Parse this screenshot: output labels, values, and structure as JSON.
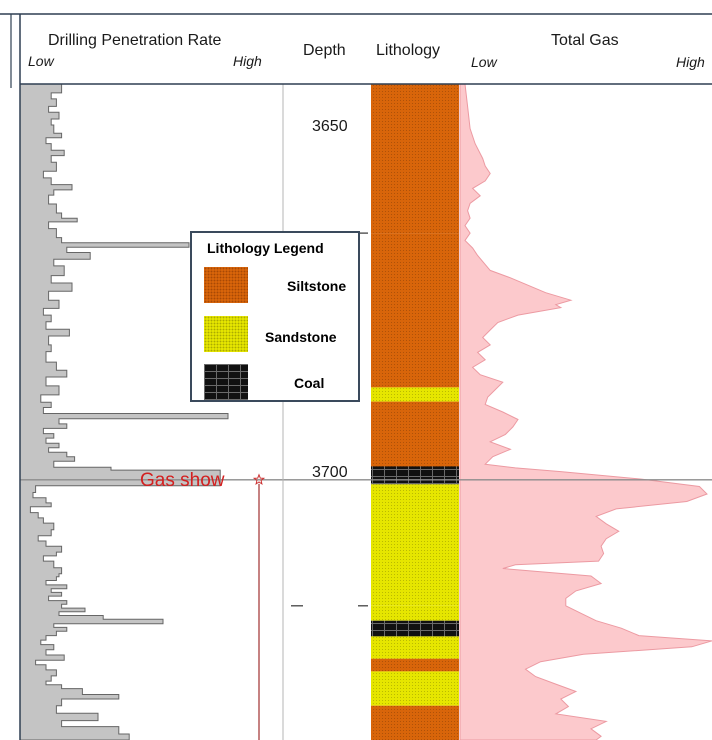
{
  "header": {
    "rop_title": "Drilling Penetration Rate",
    "rop_low": "Low",
    "rop_high": "High",
    "depth_title": "Depth",
    "lithology_title": "Lithology",
    "gas_title": "Total Gas",
    "gas_low": "Low",
    "gas_high": "High"
  },
  "depth_ticks": [
    "3650",
    "3700"
  ],
  "legend": {
    "title": "Lithology Legend",
    "items": [
      {
        "label": "Siltstone",
        "color": "#d8650a"
      },
      {
        "label": "Sandstone",
        "color": "#e6e600"
      },
      {
        "label": "Coal",
        "color": "#111111"
      }
    ]
  },
  "annotation": {
    "label": "Gas show",
    "color": "#d32020"
  },
  "colors": {
    "frame": "#2e3f52",
    "siltstone": "#d8650a",
    "sandstone": "#e6e600",
    "coal": "#111111",
    "rop_fill": "#c4c4c4",
    "rop_line": "#666666",
    "gas_fill": "#fcc9cc",
    "gas_line": "#ec9aa2",
    "gas_show_line": "#a83f3f"
  },
  "chart_data": {
    "type": "well-log",
    "depth_range": [
      3630,
      3718
    ],
    "depth_ticks": [
      3650,
      3700
    ],
    "lithology": [
      {
        "type": "siltstone",
        "top": 3630.0,
        "base": 3650.0
      },
      {
        "type": "siltstone",
        "top": 3650.0,
        "base": 3670.7
      },
      {
        "type": "sandstone",
        "top": 3670.7,
        "base": 3672.6
      },
      {
        "type": "siltstone",
        "top": 3672.6,
        "base": 3681.3
      },
      {
        "type": "coal",
        "top": 3681.3,
        "base": 3683.7
      },
      {
        "type": "sandstone",
        "top": 3683.7,
        "base": 3700.0
      },
      {
        "type": "sandstone",
        "top": 3700.0,
        "base": 3702.0
      },
      {
        "type": "coal",
        "top": 3702.0,
        "base": 3704.1
      },
      {
        "type": "sandstone",
        "top": 3704.1,
        "base": 3707.1
      },
      {
        "type": "siltstone",
        "top": 3707.1,
        "base": 3708.8
      },
      {
        "type": "sandstone",
        "top": 3708.8,
        "base": 3713.4
      },
      {
        "type": "siltstone",
        "top": 3713.4,
        "base": 3718.0
      }
    ],
    "gas_show_depth": 3683.1,
    "rop": [
      {
        "d": 3630.4,
        "v": 0.16
      },
      {
        "d": 3631.2,
        "v": 0.12
      },
      {
        "d": 3632.0,
        "v": 0.14
      },
      {
        "d": 3633.0,
        "v": 0.11
      },
      {
        "d": 3633.8,
        "v": 0.15
      },
      {
        "d": 3634.7,
        "v": 0.12
      },
      {
        "d": 3635.5,
        "v": 0.13
      },
      {
        "d": 3636.6,
        "v": 0.16
      },
      {
        "d": 3637.2,
        "v": 0.1
      },
      {
        "d": 3638.0,
        "v": 0.12
      },
      {
        "d": 3638.9,
        "v": 0.17
      },
      {
        "d": 3639.6,
        "v": 0.12
      },
      {
        "d": 3640.5,
        "v": 0.14
      },
      {
        "d": 3641.7,
        "v": 0.09
      },
      {
        "d": 3642.6,
        "v": 0.12
      },
      {
        "d": 3643.5,
        "v": 0.2
      },
      {
        "d": 3644.2,
        "v": 0.13
      },
      {
        "d": 3644.9,
        "v": 0.11
      },
      {
        "d": 3646.1,
        "v": 0.14
      },
      {
        "d": 3647.3,
        "v": 0.16
      },
      {
        "d": 3648.0,
        "v": 0.22
      },
      {
        "d": 3648.5,
        "v": 0.11
      },
      {
        "d": 3649.4,
        "v": 0.14
      },
      {
        "d": 3650.6,
        "v": 0.16
      },
      {
        "d": 3651.3,
        "v": 0.65
      },
      {
        "d": 3651.9,
        "v": 0.18
      },
      {
        "d": 3652.6,
        "v": 0.27
      },
      {
        "d": 3653.5,
        "v": 0.13
      },
      {
        "d": 3654.4,
        "v": 0.17
      },
      {
        "d": 3655.7,
        "v": 0.12
      },
      {
        "d": 3656.7,
        "v": 0.2
      },
      {
        "d": 3657.8,
        "v": 0.11
      },
      {
        "d": 3659.0,
        "v": 0.15
      },
      {
        "d": 3660.1,
        "v": 0.09
      },
      {
        "d": 3661.0,
        "v": 0.12
      },
      {
        "d": 3661.9,
        "v": 0.1
      },
      {
        "d": 3662.9,
        "v": 0.19
      },
      {
        "d": 3663.8,
        "v": 0.11
      },
      {
        "d": 3665.0,
        "v": 0.12
      },
      {
        "d": 3665.9,
        "v": 0.1
      },
      {
        "d": 3667.3,
        "v": 0.14
      },
      {
        "d": 3668.4,
        "v": 0.18
      },
      {
        "d": 3669.3,
        "v": 0.1
      },
      {
        "d": 3670.5,
        "v": 0.15
      },
      {
        "d": 3671.7,
        "v": 0.08
      },
      {
        "d": 3672.7,
        "v": 0.12
      },
      {
        "d": 3673.4,
        "v": 0.09
      },
      {
        "d": 3674.2,
        "v": 0.8
      },
      {
        "d": 3674.9,
        "v": 0.15
      },
      {
        "d": 3675.6,
        "v": 0.18
      },
      {
        "d": 3676.2,
        "v": 0.09
      },
      {
        "d": 3676.9,
        "v": 0.13
      },
      {
        "d": 3677.5,
        "v": 0.1
      },
      {
        "d": 3678.2,
        "v": 0.15
      },
      {
        "d": 3678.8,
        "v": 0.11
      },
      {
        "d": 3679.4,
        "v": 0.18
      },
      {
        "d": 3680.0,
        "v": 0.21
      },
      {
        "d": 3680.6,
        "v": 0.13
      },
      {
        "d": 3681.4,
        "v": 0.35
      },
      {
        "d": 3681.8,
        "v": 0.77
      },
      {
        "d": 3683.9,
        "v": 0.06
      },
      {
        "d": 3684.8,
        "v": 0.05
      },
      {
        "d": 3685.5,
        "v": 0.1
      },
      {
        "d": 3686.2,
        "v": 0.12
      },
      {
        "d": 3686.7,
        "v": 0.04
      },
      {
        "d": 3687.5,
        "v": 0.07
      },
      {
        "d": 3688.2,
        "v": 0.09
      },
      {
        "d": 3688.9,
        "v": 0.13
      },
      {
        "d": 3689.8,
        "v": 0.12
      },
      {
        "d": 3690.6,
        "v": 0.07
      },
      {
        "d": 3691.3,
        "v": 0.1
      },
      {
        "d": 3692.0,
        "v": 0.16
      },
      {
        "d": 3692.8,
        "v": 0.14
      },
      {
        "d": 3693.3,
        "v": 0.09
      },
      {
        "d": 3694.0,
        "v": 0.13
      },
      {
        "d": 3694.9,
        "v": 0.16
      },
      {
        "d": 3695.7,
        "v": 0.15
      },
      {
        "d": 3696.1,
        "v": 0.14
      },
      {
        "d": 3696.6,
        "v": 0.1
      },
      {
        "d": 3697.2,
        "v": 0.18
      },
      {
        "d": 3697.7,
        "v": 0.12
      },
      {
        "d": 3698.2,
        "v": 0.16
      },
      {
        "d": 3698.7,
        "v": 0.11
      },
      {
        "d": 3699.3,
        "v": 0.18
      },
      {
        "d": 3699.8,
        "v": 0.16
      },
      {
        "d": 3700.3,
        "v": 0.25
      },
      {
        "d": 3700.8,
        "v": 0.15
      },
      {
        "d": 3701.3,
        "v": 0.32
      },
      {
        "d": 3701.8,
        "v": 0.55
      },
      {
        "d": 3702.4,
        "v": 0.13
      },
      {
        "d": 3702.9,
        "v": 0.18
      },
      {
        "d": 3703.4,
        "v": 0.14
      },
      {
        "d": 3704.0,
        "v": 0.1
      },
      {
        "d": 3704.6,
        "v": 0.08
      },
      {
        "d": 3705.2,
        "v": 0.13
      },
      {
        "d": 3705.9,
        "v": 0.1
      },
      {
        "d": 3706.6,
        "v": 0.17
      },
      {
        "d": 3707.3,
        "v": 0.06
      },
      {
        "d": 3707.9,
        "v": 0.1
      },
      {
        "d": 3708.6,
        "v": 0.14
      },
      {
        "d": 3709.4,
        "v": 0.12
      },
      {
        "d": 3710.1,
        "v": 0.1
      },
      {
        "d": 3710.6,
        "v": 0.16
      },
      {
        "d": 3711.1,
        "v": 0.24
      },
      {
        "d": 3711.9,
        "v": 0.38
      },
      {
        "d": 3712.5,
        "v": 0.16
      },
      {
        "d": 3713.4,
        "v": 0.14
      },
      {
        "d": 3714.4,
        "v": 0.3
      },
      {
        "d": 3715.4,
        "v": 0.16
      },
      {
        "d": 3716.2,
        "v": 0.38
      },
      {
        "d": 3717.2,
        "v": 0.42
      }
    ],
    "total_gas": [
      {
        "d": 3630.0,
        "v": 0.02
      },
      {
        "d": 3633.0,
        "v": 0.03
      },
      {
        "d": 3636.0,
        "v": 0.04
      },
      {
        "d": 3638.0,
        "v": 0.06
      },
      {
        "d": 3640.0,
        "v": 0.09
      },
      {
        "d": 3641.0,
        "v": 0.1
      },
      {
        "d": 3642.0,
        "v": 0.12
      },
      {
        "d": 3643.0,
        "v": 0.1
      },
      {
        "d": 3644.0,
        "v": 0.05
      },
      {
        "d": 3645.0,
        "v": 0.08
      },
      {
        "d": 3646.0,
        "v": 0.04
      },
      {
        "d": 3647.0,
        "v": 0.03
      },
      {
        "d": 3648.0,
        "v": 0.04
      },
      {
        "d": 3649.0,
        "v": 0.02
      },
      {
        "d": 3650.0,
        "v": 0.04
      },
      {
        "d": 3651.0,
        "v": 0.02
      },
      {
        "d": 3652.0,
        "v": 0.05
      },
      {
        "d": 3653.0,
        "v": 0.07
      },
      {
        "d": 3655.0,
        "v": 0.12
      },
      {
        "d": 3656.0,
        "v": 0.2
      },
      {
        "d": 3658.0,
        "v": 0.34
      },
      {
        "d": 3659.0,
        "v": 0.44
      },
      {
        "d": 3659.6,
        "v": 0.38
      },
      {
        "d": 3660.0,
        "v": 0.4
      },
      {
        "d": 3661.0,
        "v": 0.23
      },
      {
        "d": 3662.0,
        "v": 0.15
      },
      {
        "d": 3663.0,
        "v": 0.12
      },
      {
        "d": 3664.0,
        "v": 0.09
      },
      {
        "d": 3665.0,
        "v": 0.12
      },
      {
        "d": 3666.0,
        "v": 0.07
      },
      {
        "d": 3667.0,
        "v": 0.1
      },
      {
        "d": 3668.0,
        "v": 0.05
      },
      {
        "d": 3669.0,
        "v": 0.08
      },
      {
        "d": 3670.0,
        "v": 0.17
      },
      {
        "d": 3671.0,
        "v": 0.14
      },
      {
        "d": 3672.0,
        "v": 0.11
      },
      {
        "d": 3673.0,
        "v": 0.1
      },
      {
        "d": 3674.0,
        "v": 0.17
      },
      {
        "d": 3675.0,
        "v": 0.23
      },
      {
        "d": 3676.0,
        "v": 0.21
      },
      {
        "d": 3677.0,
        "v": 0.18
      },
      {
        "d": 3678.0,
        "v": 0.12
      },
      {
        "d": 3679.0,
        "v": 0.2
      },
      {
        "d": 3680.0,
        "v": 0.13
      },
      {
        "d": 3681.0,
        "v": 0.1
      },
      {
        "d": 3681.5,
        "v": 0.22
      },
      {
        "d": 3682.0,
        "v": 0.4
      },
      {
        "d": 3683.0,
        "v": 0.72
      },
      {
        "d": 3684.0,
        "v": 0.95
      },
      {
        "d": 3685.0,
        "v": 0.98
      },
      {
        "d": 3686.0,
        "v": 0.9
      },
      {
        "d": 3687.0,
        "v": 0.62
      },
      {
        "d": 3688.0,
        "v": 0.54
      },
      {
        "d": 3689.0,
        "v": 0.58
      },
      {
        "d": 3690.0,
        "v": 0.63
      },
      {
        "d": 3691.0,
        "v": 0.58
      },
      {
        "d": 3692.0,
        "v": 0.56
      },
      {
        "d": 3693.0,
        "v": 0.57
      },
      {
        "d": 3694.0,
        "v": 0.55
      },
      {
        "d": 3694.5,
        "v": 0.22
      },
      {
        "d": 3695.0,
        "v": 0.17
      },
      {
        "d": 3696.0,
        "v": 0.52
      },
      {
        "d": 3697.0,
        "v": 0.56
      },
      {
        "d": 3698.0,
        "v": 0.46
      },
      {
        "d": 3699.0,
        "v": 0.42
      },
      {
        "d": 3700.0,
        "v": 0.42
      },
      {
        "d": 3701.0,
        "v": 0.48
      },
      {
        "d": 3702.0,
        "v": 0.54
      },
      {
        "d": 3703.0,
        "v": 0.64
      },
      {
        "d": 3704.0,
        "v": 0.71
      },
      {
        "d": 3704.7,
        "v": 1.0
      },
      {
        "d": 3705.5,
        "v": 0.92
      },
      {
        "d": 3706.5,
        "v": 0.49
      },
      {
        "d": 3707.5,
        "v": 0.32
      },
      {
        "d": 3708.5,
        "v": 0.26
      },
      {
        "d": 3709.5,
        "v": 0.3
      },
      {
        "d": 3710.5,
        "v": 0.38
      },
      {
        "d": 3711.5,
        "v": 0.46
      },
      {
        "d": 3712.5,
        "v": 0.4
      },
      {
        "d": 3713.5,
        "v": 0.43
      },
      {
        "d": 3714.5,
        "v": 0.38
      },
      {
        "d": 3715.5,
        "v": 0.58
      },
      {
        "d": 3716.5,
        "v": 0.52
      },
      {
        "d": 3717.5,
        "v": 0.56
      },
      {
        "d": 3718.0,
        "v": 0.54
      }
    ]
  }
}
